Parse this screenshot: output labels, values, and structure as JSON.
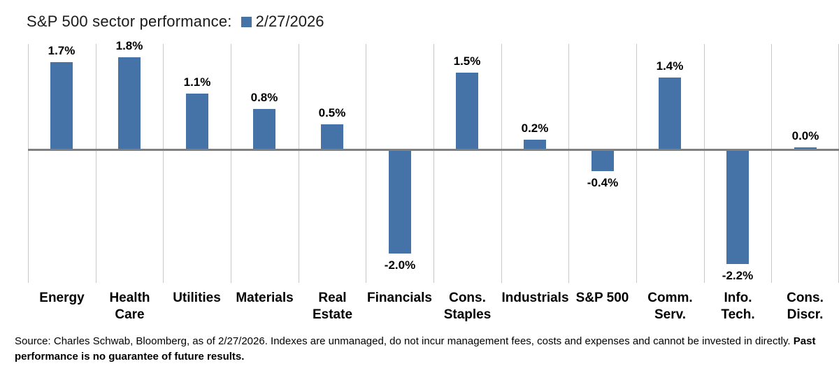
{
  "header": {
    "title": "S&P 500 sector performance:",
    "legend_label": "2/27/2026"
  },
  "chart_data": {
    "type": "bar",
    "title": "S&P 500 sector performance:",
    "legend_entries": [
      "2/27/2026"
    ],
    "legend_position": "top-right-of-title",
    "categories": [
      "Energy",
      "Health\nCare",
      "Utilities",
      "Materials",
      "Real\nEstate",
      "Financials",
      "Cons.\nStaples",
      "Industrials",
      "S&P 500",
      "Comm.\nServ.",
      "Info.\nTech.",
      "Cons.\nDiscr."
    ],
    "values": [
      1.7,
      1.8,
      1.1,
      0.8,
      0.5,
      -2.0,
      1.5,
      0.2,
      -0.4,
      1.4,
      -2.2,
      0.0
    ],
    "value_labels": [
      "1.7%",
      "1.8%",
      "1.1%",
      "0.8%",
      "0.5%",
      "-2.0%",
      "1.5%",
      "0.2%",
      "-0.4%",
      "1.4%",
      "-2.2%",
      "0.0%"
    ],
    "xlabel": "",
    "ylabel": "",
    "ylim": [
      -2.57,
      2.05
    ],
    "grid": "vertical category separators only",
    "bar_color": "#4573a7",
    "zero_line_color": "#808080",
    "gridline_color": "#c9c9c9"
  },
  "footer": {
    "source_text": "Source: Charles Schwab, Bloomberg, as of 2/27/2026.  Indexes are unmanaged, do not incur management fees, costs and expenses and cannot be invested in directly. ",
    "disclaimer_bold": "Past performance is no guarantee of future results."
  }
}
